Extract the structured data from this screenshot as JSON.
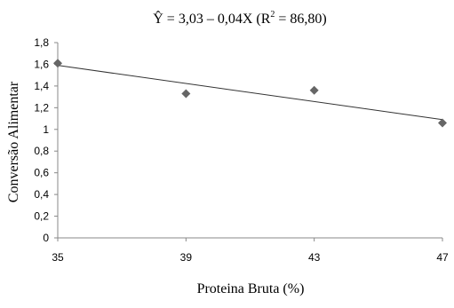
{
  "chart_data": {
    "type": "scatter",
    "title": "Ŷ = 3,03 – 0,04X (R",
    "title_superscript": "2",
    "title_end": " = 86,80)",
    "x_label": "Proteina Bruta (%)",
    "y_label": "Conversão Alimentar",
    "x": [
      35,
      39,
      43,
      47
    ],
    "values": [
      1.61,
      1.33,
      1.36,
      1.06
    ],
    "color": "#666666",
    "trendline": {
      "x": [
        35,
        47
      ],
      "values": [
        1.59,
        1.09
      ],
      "color": "#333333"
    },
    "xlim": [
      35,
      47
    ],
    "xticks": [
      35,
      39,
      43,
      47
    ],
    "ylim": [
      0,
      1.8
    ],
    "yticks": [
      0,
      {
        "value": 0.2,
        "label": "0,2"
      },
      {
        "value": 0.4,
        "label": "0,4"
      },
      {
        "value": 0.6,
        "label": "0,6"
      },
      {
        "value": 0.8,
        "label": "0,8"
      },
      1,
      {
        "value": 1.2,
        "label": "1,2"
      },
      {
        "value": 1.4,
        "label": "1,4"
      },
      {
        "value": 1.6,
        "label": "1,6"
      },
      {
        "value": 1.8,
        "label": "1,8"
      }
    ],
    "grid": false
  }
}
